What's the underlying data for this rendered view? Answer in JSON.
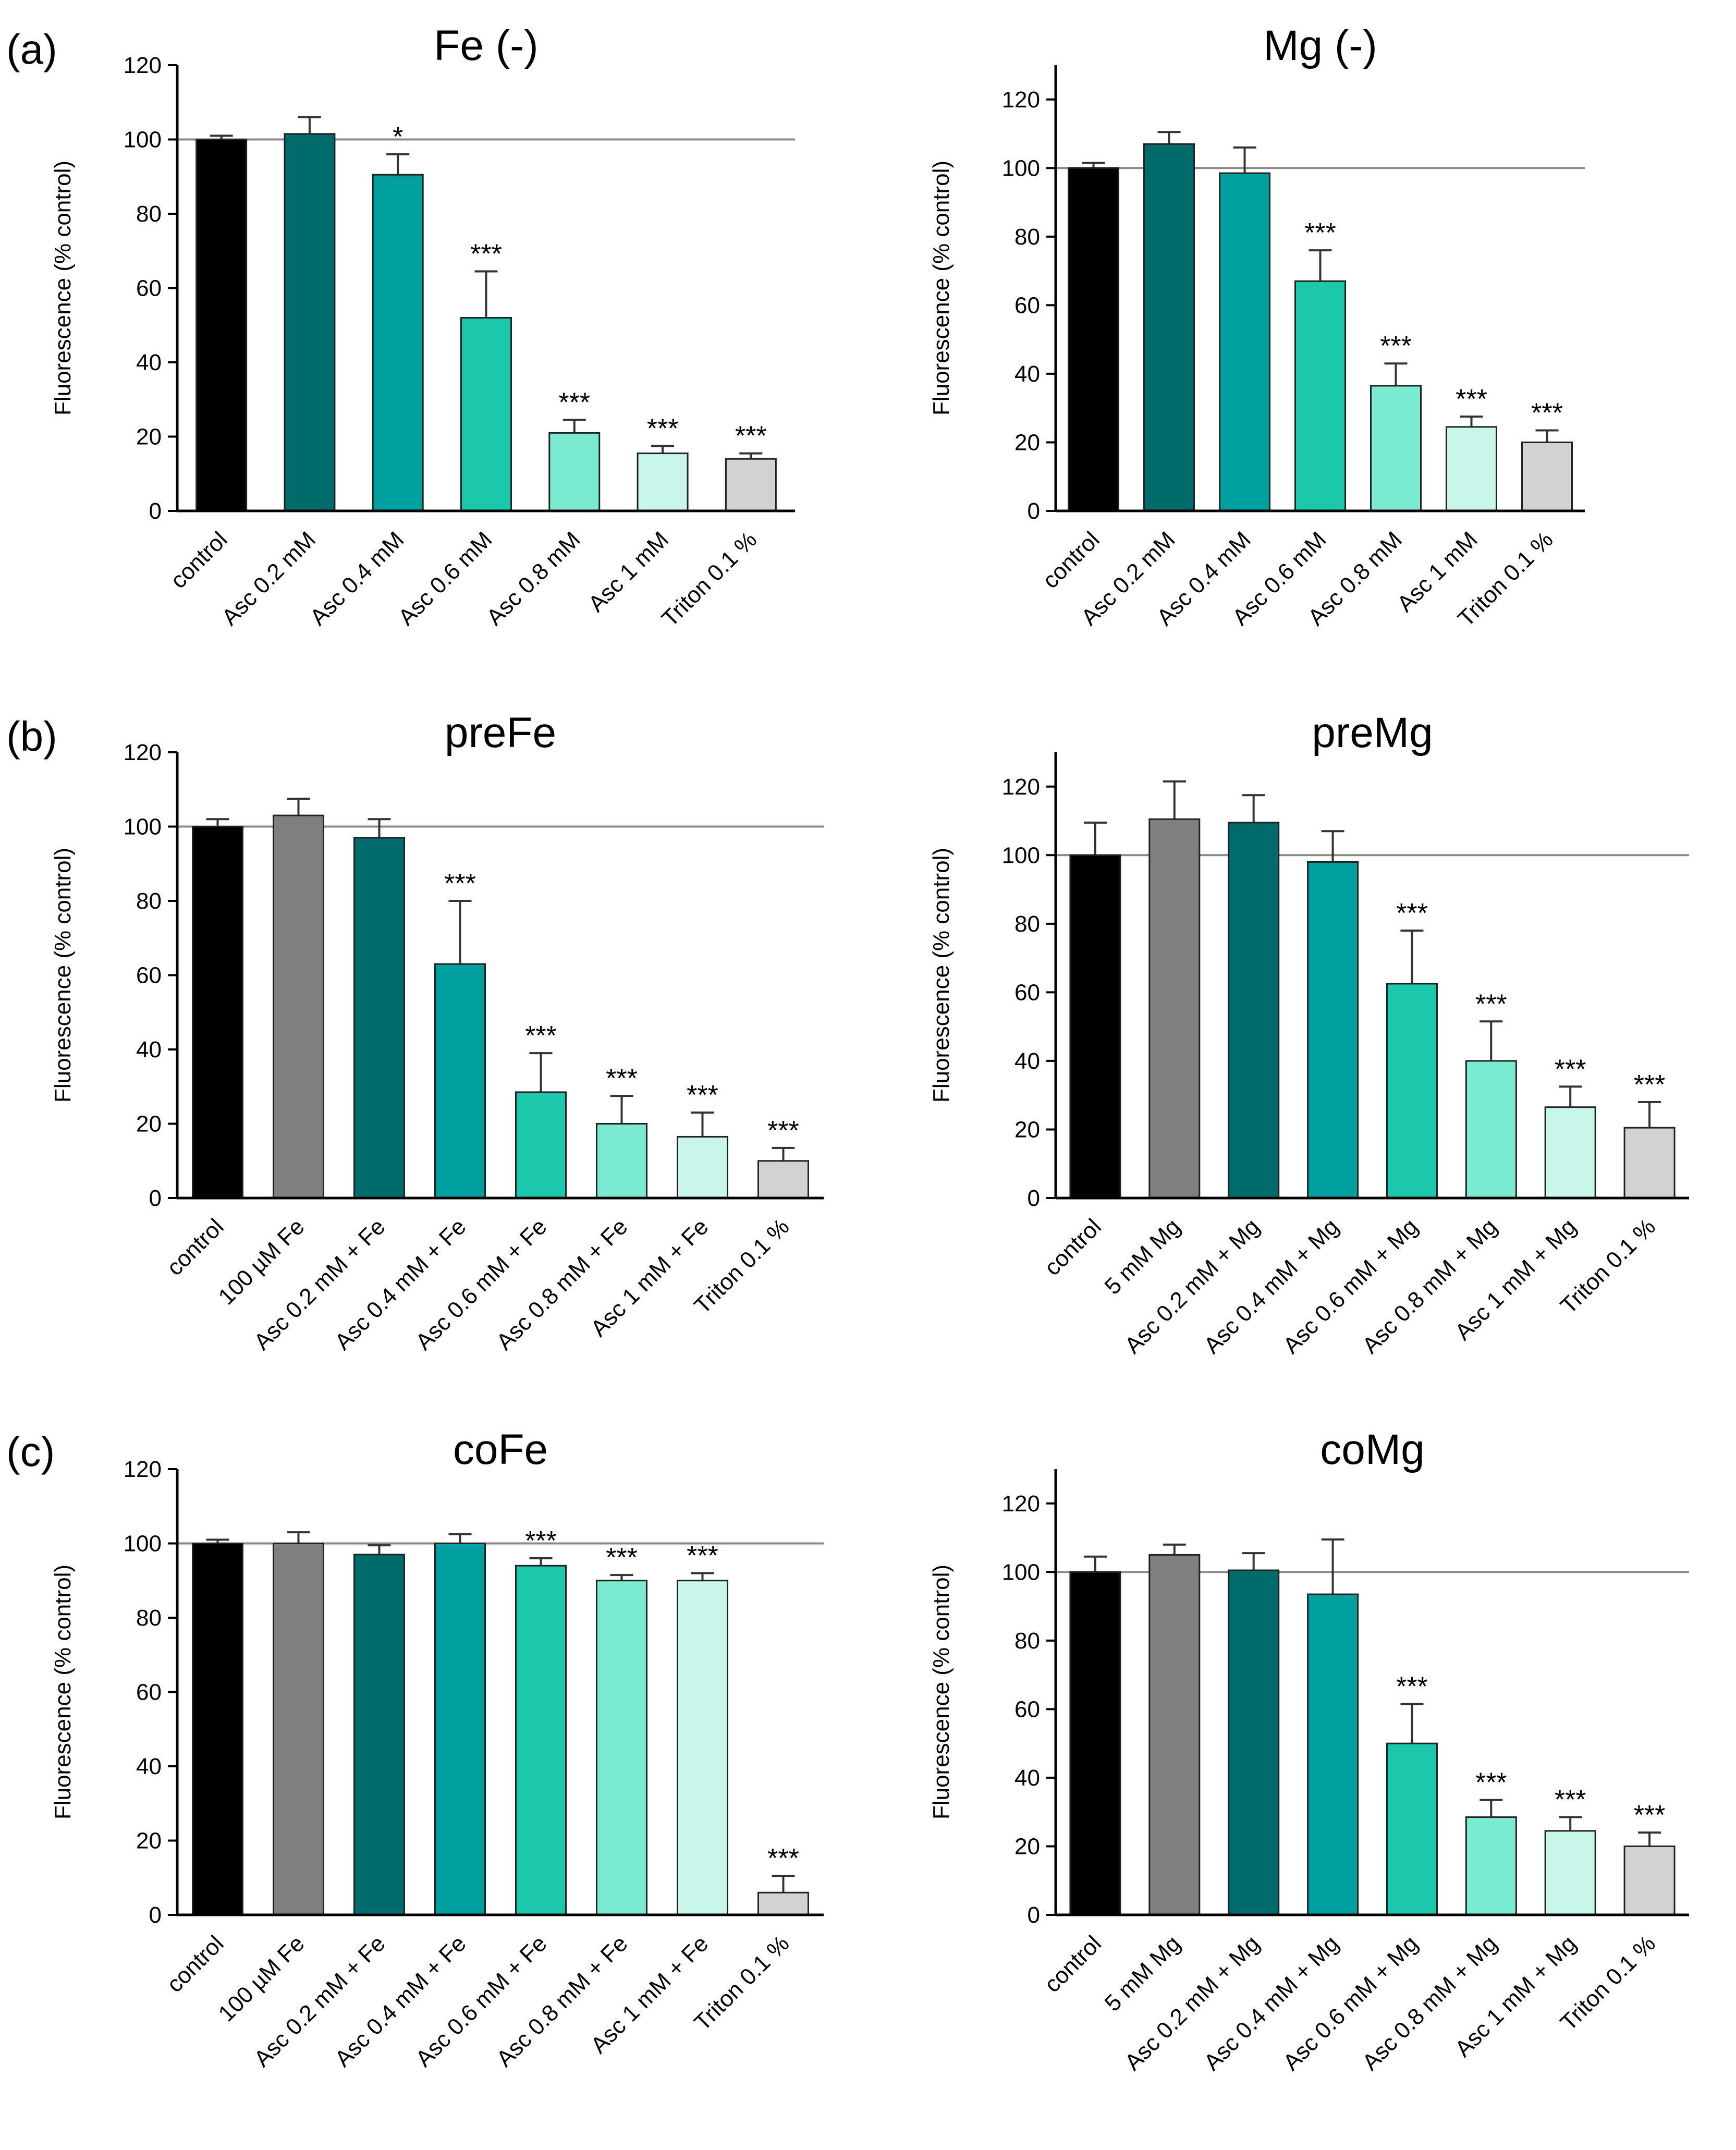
{
  "panel_labels": [
    "(a)",
    "(b)",
    "(c)"
  ],
  "chart_data": [
    {
      "type": "bar",
      "title": "Fe (-)",
      "ylabel": "Fluorescence (% control)",
      "xlabel": "",
      "ylim": [
        0,
        120
      ],
      "yticks": [
        0,
        20,
        40,
        60,
        80,
        100,
        120
      ],
      "reference_line": 100,
      "categories": [
        "control",
        "Asc 0.2 mM",
        "Asc 0.4 mM",
        "Asc 0.6 mM",
        "Asc 0.8 mM",
        "Asc 1 mM",
        "Triton 0.1 %"
      ],
      "values": [
        100,
        101.5,
        90.5,
        52,
        21,
        15.5,
        14
      ],
      "errors": [
        1,
        4.5,
        5.5,
        12.5,
        3.5,
        2,
        1.5
      ],
      "significance": [
        "",
        "",
        "*",
        "***",
        "***",
        "***",
        "***"
      ],
      "colors": [
        "#000000",
        "#006B6B",
        "#00A0A0",
        "#1CC8AC",
        "#7AEBD0",
        "#C8F6EA",
        "#D2D2D2"
      ]
    },
    {
      "type": "bar",
      "title": "Mg (-)",
      "ylabel": "Fluorescence (% control)",
      "xlabel": "",
      "ylim": [
        0,
        130
      ],
      "yticks": [
        0,
        20,
        40,
        60,
        80,
        100,
        120
      ],
      "reference_line": 100,
      "categories": [
        "control",
        "Asc 0.2 mM",
        "Asc 0.4 mM",
        "Asc 0.6 mM",
        "Asc 0.8 mM",
        "Asc 1 mM",
        "Triton 0.1 %"
      ],
      "values": [
        100,
        107,
        98.5,
        67,
        36.5,
        24.5,
        20
      ],
      "errors": [
        1.5,
        3.5,
        7.5,
        9,
        6.5,
        3,
        3.5
      ],
      "significance": [
        "",
        "",
        "",
        "***",
        "***",
        "***",
        "***"
      ],
      "colors": [
        "#000000",
        "#006B6B",
        "#00A0A0",
        "#1CC8AC",
        "#7AEBD0",
        "#C8F6EA",
        "#D2D2D2"
      ]
    },
    {
      "type": "bar",
      "title": "preFe",
      "ylabel": "Fluorescence (% control)",
      "xlabel": "",
      "ylim": [
        0,
        120
      ],
      "yticks": [
        0,
        20,
        40,
        60,
        80,
        100,
        120
      ],
      "reference_line": 100,
      "categories": [
        "control",
        "100 µM Fe",
        "Asc 0.2 mM + Fe",
        "Asc 0.4 mM + Fe",
        "Asc 0.6 mM + Fe",
        "Asc 0.8 mM + Fe",
        "Asc 1 mM + Fe",
        "Triton 0.1 %"
      ],
      "values": [
        100,
        103,
        97,
        63,
        28.5,
        20,
        16.5,
        10
      ],
      "errors": [
        2,
        4.5,
        5,
        17,
        10.5,
        7.5,
        6.5,
        3.5
      ],
      "significance": [
        "",
        "",
        "",
        "***",
        "***",
        "***",
        "***",
        "***"
      ],
      "colors": [
        "#000000",
        "#7F7F7F",
        "#006B6B",
        "#00A0A0",
        "#1CC8AC",
        "#7AEBD0",
        "#C8F6EA",
        "#D2D2D2"
      ]
    },
    {
      "type": "bar",
      "title": "preMg",
      "ylabel": "Fluorescence (% control)",
      "xlabel": "",
      "ylim": [
        0,
        130
      ],
      "yticks": [
        0,
        20,
        40,
        60,
        80,
        100,
        120
      ],
      "reference_line": 100,
      "categories": [
        "control",
        "5 mM Mg",
        "Asc 0.2 mM + Mg",
        "Asc 0.4 mM + Mg",
        "Asc 0.6 mM + Mg",
        "Asc 0.8 mM + Mg",
        "Asc 1 mM + Mg",
        "Triton 0.1 %"
      ],
      "values": [
        100,
        110.5,
        109.5,
        98,
        62.5,
        40,
        26.5,
        20.5
      ],
      "errors": [
        9.5,
        11,
        8,
        9,
        15.5,
        11.5,
        6,
        7.5
      ],
      "significance": [
        "",
        "",
        "",
        "",
        "***",
        "***",
        "***",
        "***"
      ],
      "colors": [
        "#000000",
        "#7F7F7F",
        "#006B6B",
        "#00A0A0",
        "#1CC8AC",
        "#7AEBD0",
        "#C8F6EA",
        "#D2D2D2"
      ]
    },
    {
      "type": "bar",
      "title": "coFe",
      "ylabel": "Fluorescence (% control)",
      "xlabel": "",
      "ylim": [
        0,
        120
      ],
      "yticks": [
        0,
        20,
        40,
        60,
        80,
        100,
        120
      ],
      "reference_line": 100,
      "categories": [
        "control",
        "100 µM Fe",
        "Asc 0.2 mM + Fe",
        "Asc 0.4 mM + Fe",
        "Asc 0.6 mM + Fe",
        "Asc 0.8 mM + Fe",
        "Asc 1 mM + Fe",
        "Triton 0.1 %"
      ],
      "values": [
        100,
        100,
        97,
        100,
        94,
        90,
        90,
        6
      ],
      "errors": [
        1,
        3,
        2.5,
        2.5,
        2,
        1.5,
        2,
        4.5
      ],
      "significance": [
        "",
        "",
        "",
        "",
        "***",
        "***",
        "***",
        "***"
      ],
      "colors": [
        "#000000",
        "#7F7F7F",
        "#006B6B",
        "#00A0A0",
        "#1CC8AC",
        "#7AEBD0",
        "#C8F6EA",
        "#D2D2D2"
      ]
    },
    {
      "type": "bar",
      "title": "coMg",
      "ylabel": "Fluorescence (% control)",
      "xlabel": "",
      "ylim": [
        0,
        130
      ],
      "yticks": [
        0,
        20,
        40,
        60,
        80,
        100,
        120
      ],
      "reference_line": 100,
      "categories": [
        "control",
        "5 mM Mg",
        "Asc 0.2 mM + Mg",
        "Asc 0.4 mM + Mg",
        "Asc 0.6 mM + Mg",
        "Asc 0.8 mM + Mg",
        "Asc 1 mM + Mg",
        "Triton 0.1 %"
      ],
      "values": [
        100,
        105,
        100.5,
        93.5,
        50,
        28.5,
        24.5,
        20
      ],
      "errors": [
        4.5,
        3,
        5,
        16,
        11.5,
        5,
        4,
        4
      ],
      "significance": [
        "",
        "",
        "",
        "",
        "***",
        "***",
        "***",
        "***"
      ],
      "colors": [
        "#000000",
        "#7F7F7F",
        "#006B6B",
        "#00A0A0",
        "#1CC8AC",
        "#7AEBD0",
        "#C8F6EA",
        "#D2D2D2"
      ]
    }
  ]
}
